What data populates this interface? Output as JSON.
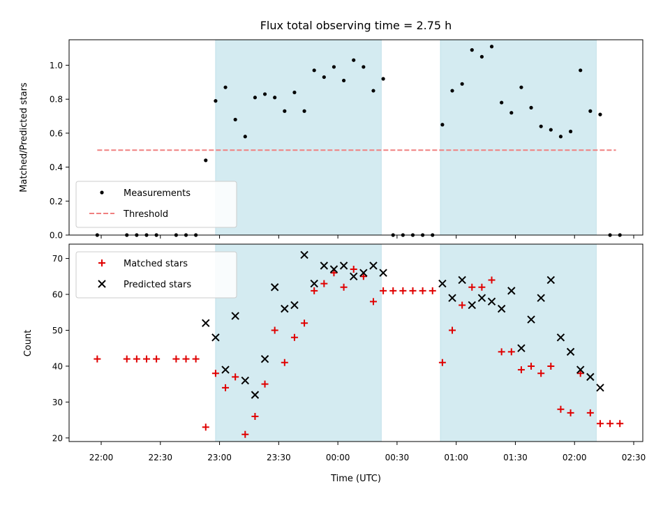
{
  "chart_data": {
    "type": "scatter",
    "title": "Flux total observing time = 2.75 h",
    "xlabel": "Time (UTC)",
    "x_ticks": [
      "22:00",
      "22:30",
      "23:00",
      "23:30",
      "00:00",
      "00:30",
      "01:00",
      "01:30",
      "02:00",
      "02:30"
    ],
    "colors": {
      "background": "#ffffff",
      "span": "#d4ebf1",
      "measurement": "#000000",
      "threshold": "#f08080",
      "matched": "#e00000",
      "predicted": "#000000"
    },
    "spans": [
      {
        "start": "22:58",
        "end": "00:22"
      },
      {
        "start": "00:52",
        "end": "02:11"
      }
    ],
    "top": {
      "ylabel": "Matched/Predicted stars",
      "ylim": [
        0,
        1.15
      ],
      "yticks": [
        "0.0",
        "0.2",
        "0.4",
        "0.6",
        "0.8",
        "1.0"
      ],
      "legend": {
        "placement": "lower-left",
        "entries": [
          "Measurements",
          "Threshold"
        ]
      },
      "threshold": {
        "name": "Threshold",
        "value": 0.5,
        "x_start": "21:58",
        "x_end": "02:21"
      },
      "measurements": {
        "name": "Measurements",
        "points": [
          [
            "21:58",
            0.0
          ],
          [
            "22:13",
            0.0
          ],
          [
            "22:18",
            0.0
          ],
          [
            "22:23",
            0.0
          ],
          [
            "22:28",
            0.0
          ],
          [
            "22:38",
            0.0
          ],
          [
            "22:43",
            0.0
          ],
          [
            "22:48",
            0.0
          ],
          [
            "22:53",
            0.44
          ],
          [
            "22:58",
            0.79
          ],
          [
            "23:03",
            0.87
          ],
          [
            "23:08",
            0.68
          ],
          [
            "23:13",
            0.58
          ],
          [
            "23:18",
            0.81
          ],
          [
            "23:23",
            0.83
          ],
          [
            "23:28",
            0.81
          ],
          [
            "23:33",
            0.73
          ],
          [
            "23:38",
            0.84
          ],
          [
            "23:43",
            0.73
          ],
          [
            "23:48",
            0.97
          ],
          [
            "23:53",
            0.93
          ],
          [
            "23:58",
            0.99
          ],
          [
            "00:03",
            0.91
          ],
          [
            "00:08",
            1.03
          ],
          [
            "00:13",
            0.99
          ],
          [
            "00:18",
            0.85
          ],
          [
            "00:23",
            0.92
          ],
          [
            "00:28",
            0.0
          ],
          [
            "00:33",
            0.0
          ],
          [
            "00:38",
            0.0
          ],
          [
            "00:43",
            0.0
          ],
          [
            "00:48",
            0.0
          ],
          [
            "00:53",
            0.65
          ],
          [
            "00:58",
            0.85
          ],
          [
            "01:03",
            0.89
          ],
          [
            "01:08",
            1.09
          ],
          [
            "01:13",
            1.05
          ],
          [
            "01:18",
            1.11
          ],
          [
            "01:23",
            0.78
          ],
          [
            "01:28",
            0.72
          ],
          [
            "01:33",
            0.87
          ],
          [
            "01:38",
            0.75
          ],
          [
            "01:43",
            0.64
          ],
          [
            "01:48",
            0.62
          ],
          [
            "01:53",
            0.58
          ],
          [
            "01:58",
            0.61
          ],
          [
            "02:03",
            0.97
          ],
          [
            "02:08",
            0.73
          ],
          [
            "02:13",
            0.71
          ],
          [
            "02:18",
            0.0
          ],
          [
            "02:23",
            0.0
          ]
        ]
      }
    },
    "bottom": {
      "ylabel": "Count",
      "ylim": [
        19,
        74
      ],
      "yticks": [
        "20",
        "30",
        "40",
        "50",
        "60",
        "70"
      ],
      "legend": {
        "placement": "upper-left",
        "entries": [
          "Matched stars",
          "Predicted stars"
        ]
      },
      "matched": {
        "name": "Matched stars",
        "points": [
          [
            "21:58",
            42
          ],
          [
            "22:13",
            42
          ],
          [
            "22:18",
            42
          ],
          [
            "22:23",
            42
          ],
          [
            "22:28",
            42
          ],
          [
            "22:38",
            42
          ],
          [
            "22:43",
            42
          ],
          [
            "22:48",
            42
          ],
          [
            "22:53",
            23
          ],
          [
            "22:58",
            38
          ],
          [
            "23:03",
            34
          ],
          [
            "23:08",
            37
          ],
          [
            "23:13",
            21
          ],
          [
            "23:18",
            26
          ],
          [
            "23:23",
            35
          ],
          [
            "23:28",
            50
          ],
          [
            "23:33",
            41
          ],
          [
            "23:38",
            48
          ],
          [
            "23:43",
            52
          ],
          [
            "23:48",
            61
          ],
          [
            "23:53",
            63
          ],
          [
            "23:58",
            66
          ],
          [
            "00:03",
            62
          ],
          [
            "00:08",
            67
          ],
          [
            "00:13",
            65
          ],
          [
            "00:18",
            58
          ],
          [
            "00:23",
            61
          ],
          [
            "00:28",
            61
          ],
          [
            "00:33",
            61
          ],
          [
            "00:38",
            61
          ],
          [
            "00:43",
            61
          ],
          [
            "00:48",
            61
          ],
          [
            "00:53",
            41
          ],
          [
            "00:58",
            50
          ],
          [
            "01:03",
            57
          ],
          [
            "01:08",
            62
          ],
          [
            "01:13",
            62
          ],
          [
            "01:18",
            64
          ],
          [
            "01:23",
            44
          ],
          [
            "01:28",
            44
          ],
          [
            "01:33",
            39
          ],
          [
            "01:38",
            40
          ],
          [
            "01:43",
            38
          ],
          [
            "01:48",
            40
          ],
          [
            "01:53",
            28
          ],
          [
            "01:58",
            27
          ],
          [
            "02:03",
            38
          ],
          [
            "02:08",
            27
          ],
          [
            "02:13",
            24
          ],
          [
            "02:18",
            24
          ],
          [
            "02:23",
            24
          ]
        ]
      },
      "predicted": {
        "name": "Predicted stars",
        "points": [
          [
            "22:53",
            52
          ],
          [
            "22:58",
            48
          ],
          [
            "23:03",
            39
          ],
          [
            "23:08",
            54
          ],
          [
            "23:13",
            36
          ],
          [
            "23:18",
            32
          ],
          [
            "23:23",
            42
          ],
          [
            "23:28",
            62
          ],
          [
            "23:33",
            56
          ],
          [
            "23:38",
            57
          ],
          [
            "23:43",
            71
          ],
          [
            "23:48",
            63
          ],
          [
            "23:53",
            68
          ],
          [
            "23:58",
            67
          ],
          [
            "00:03",
            68
          ],
          [
            "00:08",
            65
          ],
          [
            "00:13",
            66
          ],
          [
            "00:18",
            68
          ],
          [
            "00:23",
            66
          ],
          [
            "00:53",
            63
          ],
          [
            "00:58",
            59
          ],
          [
            "01:03",
            64
          ],
          [
            "01:08",
            57
          ],
          [
            "01:13",
            59
          ],
          [
            "01:18",
            58
          ],
          [
            "01:23",
            56
          ],
          [
            "01:28",
            61
          ],
          [
            "01:33",
            45
          ],
          [
            "01:38",
            53
          ],
          [
            "01:43",
            59
          ],
          [
            "01:48",
            64
          ],
          [
            "01:53",
            48
          ],
          [
            "01:58",
            44
          ],
          [
            "02:03",
            39
          ],
          [
            "02:08",
            37
          ],
          [
            "02:13",
            34
          ]
        ]
      }
    }
  }
}
